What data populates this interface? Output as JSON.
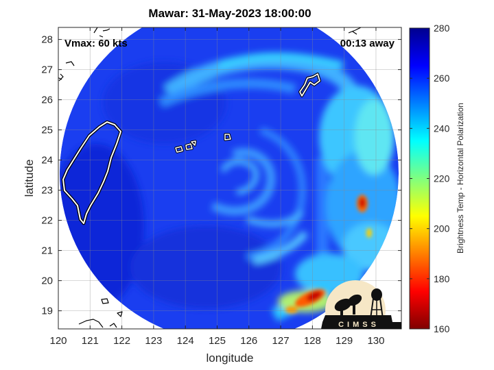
{
  "title": "Mawar: 31-May-2023 18:00:00",
  "overlay": {
    "vmax_label": "Vmax: 60 kts",
    "time_label": "00:13 away"
  },
  "logo": {
    "text": "CIMSS"
  },
  "chart_data": {
    "type": "heatmap",
    "xlabel": "longitude",
    "ylabel": "latitude",
    "xlim": [
      120,
      130.8
    ],
    "ylim": [
      18.4,
      28.4
    ],
    "x_ticks": [
      120,
      121,
      122,
      123,
      124,
      125,
      126,
      127,
      128,
      129,
      130
    ],
    "y_ticks": [
      19,
      20,
      21,
      22,
      23,
      24,
      25,
      26,
      27,
      28
    ],
    "grid": true,
    "storm_center": [
      125.5,
      23.5
    ],
    "colorbar": {
      "label": "Brightness Temp - Horizontal Polarization",
      "min": 160,
      "max": 280,
      "ticks": [
        160,
        180,
        200,
        220,
        240,
        260,
        280
      ],
      "colormap": "jet"
    }
  }
}
